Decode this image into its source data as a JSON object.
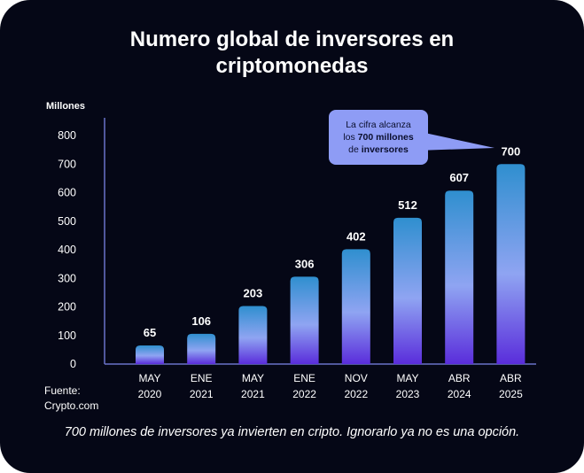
{
  "title": "Numero global de inversores en criptomonedas",
  "y_unit_label": "Millones",
  "source_line1": "Fuente:",
  "source_line2": "Crypto.com",
  "caption": "700 millones de inversores ya invierten en cripto. Ignorarlo ya no es una opción.",
  "callout": {
    "line1": "La cifra alcanza",
    "line2_pre": "los ",
    "line2_bold": "700 millones",
    "line3_pre": "de ",
    "line3_bold": "inversores"
  },
  "colors": {
    "background": "#050716",
    "bar_top": "#2f8fcf",
    "bar_mid": "#8fa4f2",
    "bar_bottom": "#5a2ddb",
    "axis": "#6a72c9",
    "callout_bg": "#8e9cf5"
  },
  "chart_data": {
    "type": "bar",
    "categories": [
      [
        "MAY",
        "2020"
      ],
      [
        "ENE",
        "2021"
      ],
      [
        "MAY",
        "2021"
      ],
      [
        "ENE",
        "2022"
      ],
      [
        "NOV",
        "2022"
      ],
      [
        "MAY",
        "2023"
      ],
      [
        "ABR",
        "2024"
      ],
      [
        "ABR",
        "2025"
      ]
    ],
    "values": [
      65,
      106,
      203,
      306,
      402,
      512,
      607,
      700
    ],
    "ylabel": "Millones",
    "yticks": [
      0,
      100,
      200,
      300,
      400,
      500,
      600,
      700,
      800
    ],
    "ylim": [
      0,
      800
    ],
    "grid": false,
    "data_labels": true
  }
}
